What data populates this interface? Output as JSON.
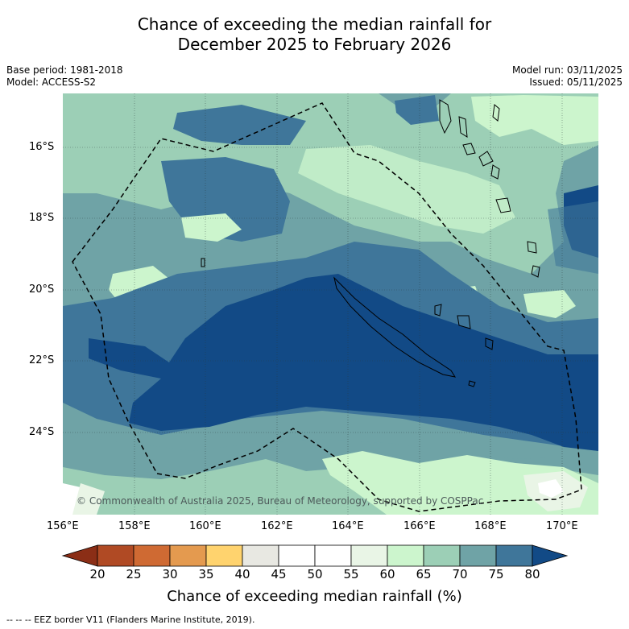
{
  "title_line1": "Chance of exceeding the median rainfall for",
  "title_line2": "December 2025 to February 2026",
  "base_period": "Base period: 1981-2018",
  "model": "Model: ACCESS-S2",
  "model_run": "Model run: 03/11/2025",
  "issued": "Issued: 05/11/2025",
  "copyright": "© Commonwealth of Australia 2025, Bureau of Meteorology, supported by COSPPac",
  "lat_labels": [
    "16°S",
    "18°S",
    "20°S",
    "22°S",
    "24°S"
  ],
  "lon_labels": [
    "156°E",
    "158°E",
    "160°E",
    "162°E",
    "164°E",
    "166°E",
    "168°E",
    "170°E"
  ],
  "colorbar": {
    "ticks": [
      "20",
      "25",
      "30",
      "35",
      "40",
      "45",
      "50",
      "55",
      "60",
      "65",
      "70",
      "75",
      "80"
    ],
    "colors": [
      "#8b2e16",
      "#b04a24",
      "#cf6a33",
      "#e49a4f",
      "#ffd36e",
      "#e8e8e2",
      "#ffffff",
      "#ffffff",
      "#e9f5e6",
      "#ccf5cd",
      "#9ccfb6",
      "#6fa3a6",
      "#3f769a",
      "#124a86"
    ],
    "title": "Chance of exceeding median rainfall (%)"
  },
  "footnote": "--  --  -- EEZ border V11 (Flanders Marine Institute, 2019)."
}
